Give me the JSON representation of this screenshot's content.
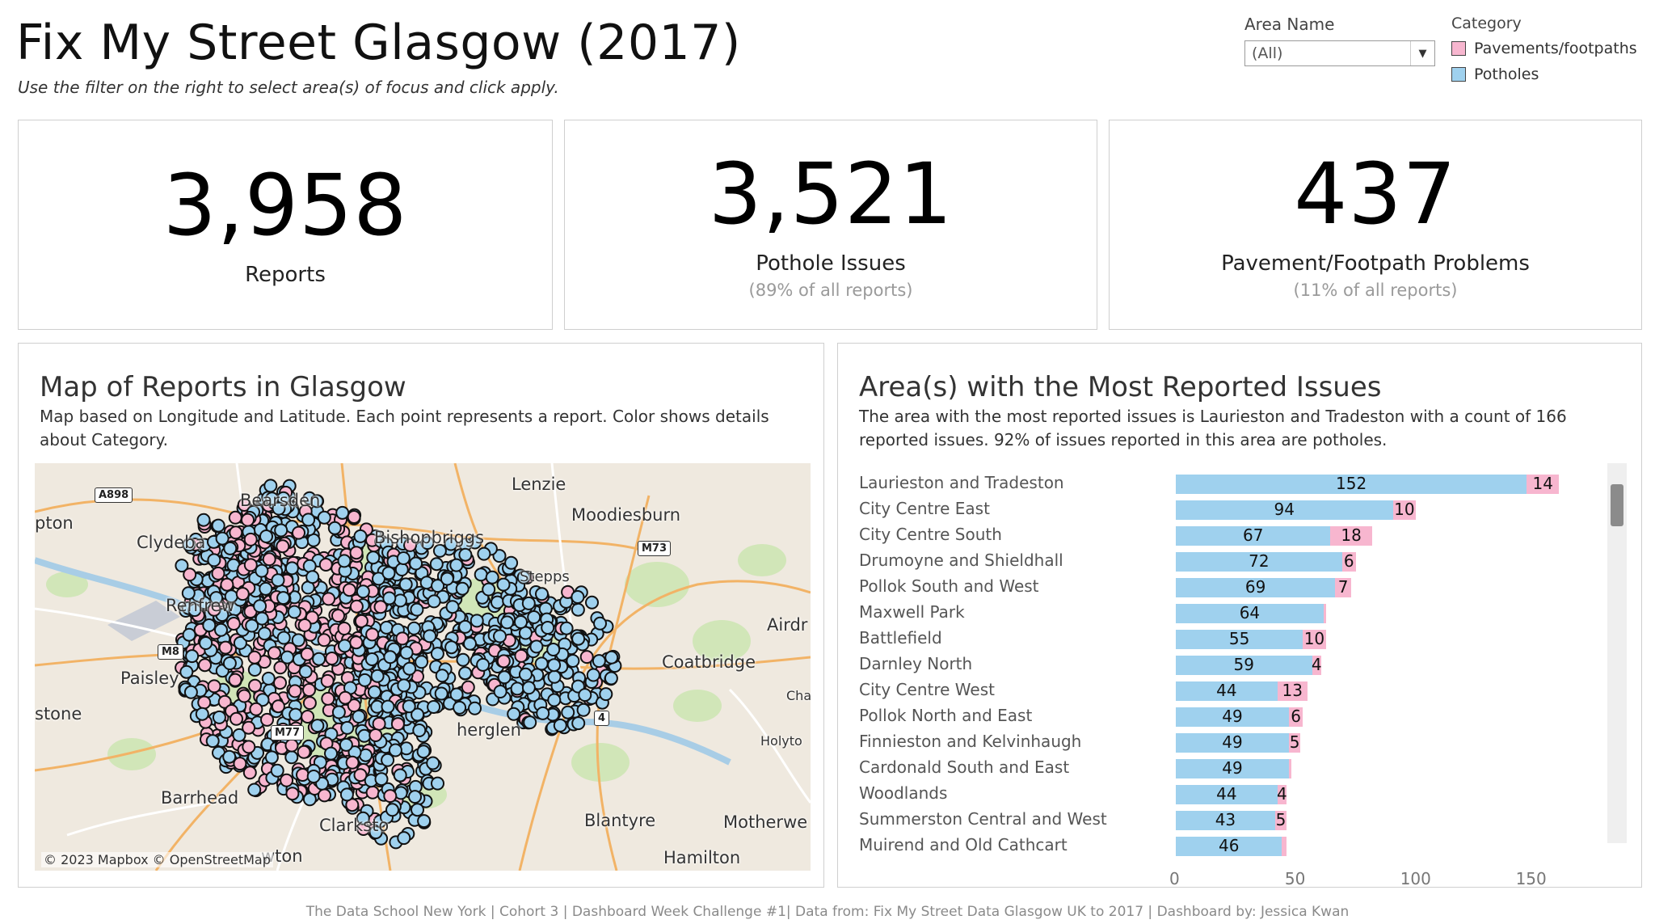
{
  "header": {
    "title": "Fix My Street Glasgow (2017)",
    "subtitle": "Use the filter on the right to select area(s) of focus and click apply."
  },
  "filter": {
    "label": "Area Name",
    "selected": "(All)"
  },
  "legend": {
    "title": "Category",
    "items": [
      {
        "label": "Pavements/footpaths",
        "color": "#f7b6cf"
      },
      {
        "label": "Potholes",
        "color": "#9fd1ee"
      }
    ]
  },
  "kpis": [
    {
      "value": "3,958",
      "label": "Reports",
      "sub": ""
    },
    {
      "value": "3,521",
      "label": "Pothole Issues",
      "sub": "(89% of all reports)"
    },
    {
      "value": "437",
      "label": "Pavement/Footpath Problems",
      "sub": "(11% of all reports)"
    }
  ],
  "map_panel": {
    "title": "Map of Reports in Glasgow",
    "description": "Map based on Longitude and Latitude.  Each point represents a report. Color shows details about Category.",
    "attribution": "© 2023 Mapbox © OpenStreetMap",
    "places": [
      "Bearsden",
      "Lenzie",
      "Moodiesburn",
      "Clydeba",
      "Bishopbriggs",
      "pton",
      "Stepps",
      "Renfrew",
      "Airdr",
      "Paisley",
      "Coatbridge",
      "Cha",
      "Holyto",
      "stone",
      "herglen",
      "Barrhead",
      "Clarksto",
      "Blantyre",
      "Motherwe",
      "wton",
      "Hamilton"
    ],
    "roads": [
      "A898",
      "M73",
      "M8",
      "M77",
      "4"
    ]
  },
  "bar_panel": {
    "title": "Area(s) with the Most Reported Issues",
    "description": "The area with the most reported issues is Laurieston and Tradeston with a count of 166 reported issues. 92% of issues reported in this area are potholes."
  },
  "chart_data": {
    "type": "bar",
    "orientation": "horizontal",
    "stacked": true,
    "categories": [
      "Laurieston and Tradeston",
      "City Centre East",
      "City Centre South",
      "Drumoyne and Shieldhall",
      "Pollok South and West",
      "Maxwell Park",
      "Battlefield",
      "Darnley North",
      "City Centre West",
      "Pollok North and East",
      "Finnieston and Kelvinhaugh",
      "Cardonald South and East",
      "Woodlands",
      "Summerston Central and West",
      "Muirend and Old Cathcart"
    ],
    "series": [
      {
        "name": "Potholes",
        "color": "#9fd1ee",
        "values": [
          152,
          94,
          67,
          72,
          69,
          64,
          55,
          59,
          44,
          49,
          49,
          49,
          44,
          43,
          46
        ]
      },
      {
        "name": "Pavements/footpaths",
        "color": "#f7b6cf",
        "values": [
          14,
          10,
          18,
          6,
          7,
          1,
          10,
          4,
          13,
          6,
          5,
          1,
          4,
          5,
          2
        ]
      }
    ],
    "pavement_labels_shown": [
      true,
      true,
      true,
      true,
      true,
      false,
      true,
      true,
      true,
      true,
      true,
      false,
      true,
      true,
      false
    ],
    "xlim": [
      0,
      175
    ],
    "xticks": [
      0,
      50,
      100,
      150
    ],
    "xlabel": "",
    "ylabel": ""
  },
  "footer": "The Data School New York | Cohort 3 | Dashboard Week Challenge #1| Data from: Fix My Street Data Glasgow UK to 2017 | Dashboard by: Jessica Kwan"
}
